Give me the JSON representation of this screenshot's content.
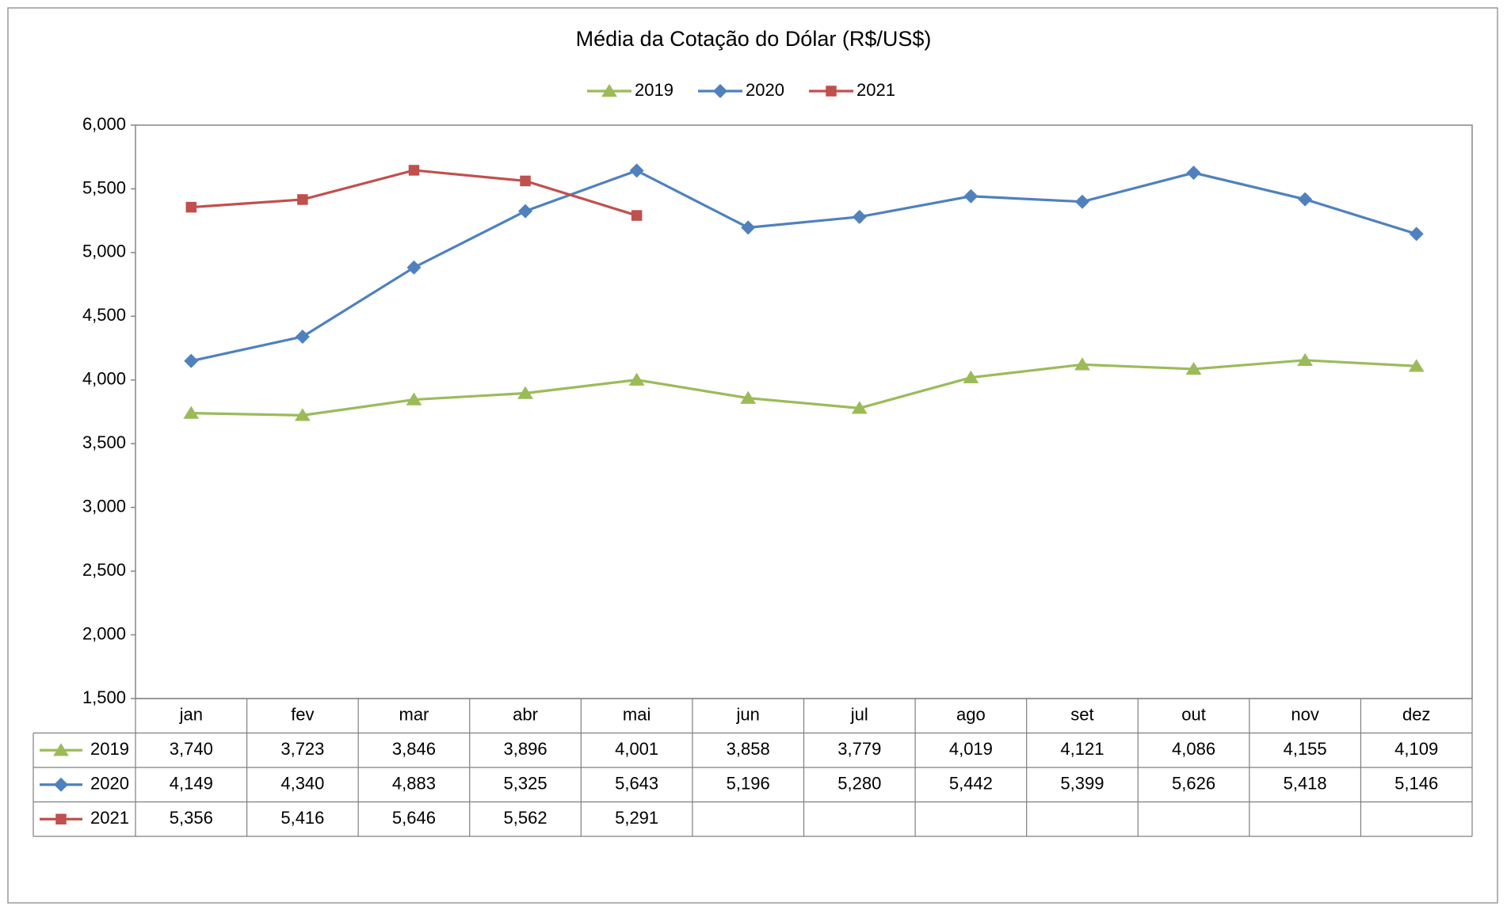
{
  "chart_data": {
    "type": "line",
    "title": "Média da Cotação do Dólar (R$/US$)",
    "categories": [
      "jan",
      "fev",
      "mar",
      "abr",
      "mai",
      "jun",
      "jul",
      "ago",
      "set",
      "out",
      "nov",
      "dez"
    ],
    "series": [
      {
        "name": "2019",
        "color": "#9bbb59",
        "marker": "triangle",
        "values": [
          3.74,
          3.723,
          3.846,
          3.896,
          4.001,
          3.858,
          3.779,
          4.019,
          4.121,
          4.086,
          4.155,
          4.109
        ],
        "value_labels": [
          "3,740",
          "3,723",
          "3,846",
          "3,896",
          "4,001",
          "3,858",
          "3,779",
          "4,019",
          "4,121",
          "4,086",
          "4,155",
          "4,109"
        ]
      },
      {
        "name": "2020",
        "color": "#4f81bd",
        "marker": "diamond",
        "values": [
          4.149,
          4.34,
          4.883,
          5.325,
          5.643,
          5.196,
          5.28,
          5.442,
          5.399,
          5.626,
          5.418,
          5.146
        ],
        "value_labels": [
          "4,149",
          "4,340",
          "4,883",
          "5,325",
          "5,643",
          "5,196",
          "5,280",
          "5,442",
          "5,399",
          "5,626",
          "5,418",
          "5,146"
        ]
      },
      {
        "name": "2021",
        "color": "#c0504d",
        "marker": "square",
        "values": [
          5.356,
          5.416,
          5.646,
          5.562,
          5.291,
          null,
          null,
          null,
          null,
          null,
          null,
          null
        ],
        "value_labels": [
          "5,356",
          "5,416",
          "5,646",
          "5,562",
          "5,291",
          null,
          null,
          null,
          null,
          null,
          null,
          null
        ]
      }
    ],
    "ylim": [
      1.5,
      6
    ],
    "yticks": [
      {
        "value": 1.5,
        "label": "1,500"
      },
      {
        "value": 2,
        "label": "2,000"
      },
      {
        "value": 2.5,
        "label": "2,500"
      },
      {
        "value": 3,
        "label": "3,000"
      },
      {
        "value": 3.5,
        "label": "3,500"
      },
      {
        "value": 4,
        "label": "4,000"
      },
      {
        "value": 4.5,
        "label": "4,500"
      },
      {
        "value": 5,
        "label": "5,000"
      },
      {
        "value": 5.5,
        "label": "5,500"
      },
      {
        "value": 6,
        "label": "6,000"
      }
    ],
    "grid": false,
    "legend": "top"
  }
}
